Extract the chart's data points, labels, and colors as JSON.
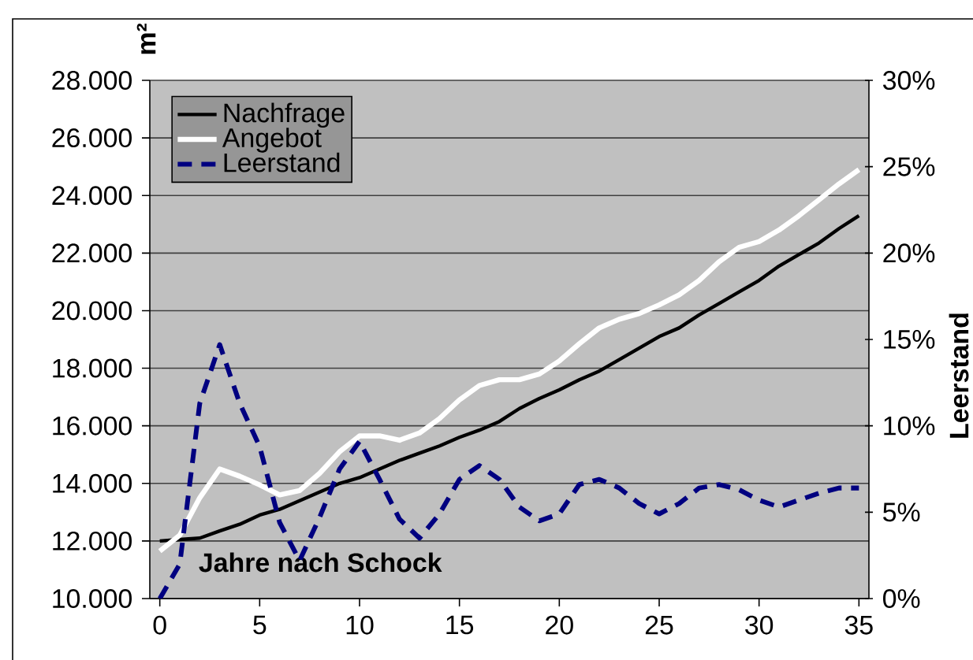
{
  "chart_data": {
    "type": "line",
    "xlabel": "Jahre nach Schock",
    "ylabel": "m²",
    "y2label": "Leerstand",
    "x": [
      0,
      1,
      2,
      3,
      4,
      5,
      6,
      7,
      8,
      9,
      10,
      11,
      12,
      13,
      14,
      15,
      16,
      17,
      18,
      19,
      20,
      21,
      22,
      23,
      24,
      25,
      26,
      27,
      28,
      29,
      30,
      31,
      32,
      33,
      34,
      35
    ],
    "xlim": [
      -0.5,
      35.5
    ],
    "xticks": [
      0,
      5,
      10,
      15,
      20,
      25,
      30,
      35
    ],
    "ylim": [
      10000,
      28000
    ],
    "yticks": [
      {
        "value": 10000,
        "label": "10.000"
      },
      {
        "value": 12000,
        "label": "12.000"
      },
      {
        "value": 14000,
        "label": "14.000"
      },
      {
        "value": 16000,
        "label": "16.000"
      },
      {
        "value": 18000,
        "label": "18.000"
      },
      {
        "value": 20000,
        "label": "20.000"
      },
      {
        "value": 22000,
        "label": "22.000"
      },
      {
        "value": 24000,
        "label": "24.000"
      },
      {
        "value": 26000,
        "label": "26.000"
      },
      {
        "value": 28000,
        "label": "28.000"
      }
    ],
    "y2lim": [
      0,
      30
    ],
    "y2ticks": [
      {
        "value": 0,
        "label": "0%"
      },
      {
        "value": 5,
        "label": "5%"
      },
      {
        "value": 10,
        "label": "10%"
      },
      {
        "value": 15,
        "label": "15%"
      },
      {
        "value": 20,
        "label": "20%"
      },
      {
        "value": 25,
        "label": "25%"
      },
      {
        "value": 30,
        "label": "30%"
      }
    ],
    "series": [
      {
        "name": "Nachfrage",
        "color": "#000000",
        "line_style": "solid",
        "values": [
          12000,
          12050,
          12100,
          12350,
          12580,
          12900,
          13100,
          13400,
          13700,
          14000,
          14200,
          14500,
          14800,
          15050,
          15300,
          15600,
          15850,
          16150,
          16600,
          16950,
          17250,
          17600,
          17900,
          18300,
          18700,
          19100,
          19400,
          19850,
          20250,
          20650,
          21050,
          21550,
          21950,
          22350,
          22850,
          23300
        ]
      },
      {
        "name": "Angebot",
        "color": "#ffffff",
        "line_style": "solid",
        "values": [
          11650,
          12200,
          13500,
          14500,
          14250,
          13950,
          13600,
          13750,
          14350,
          15100,
          15650,
          15650,
          15500,
          15750,
          16250,
          16900,
          17400,
          17600,
          17600,
          17800,
          18250,
          18850,
          19400,
          19700,
          19900,
          20200,
          20550,
          21050,
          21700,
          22200,
          22400,
          22800,
          23300,
          23850,
          24400,
          24900
        ]
      },
      {
        "name": "Leerstand",
        "color": "#000080",
        "line_style": "dashed",
        "axis": "y2",
        "values": [
          0,
          2.0,
          11.3,
          14.7,
          11.3,
          8.8,
          4.4,
          2.2,
          4.7,
          7.5,
          9.1,
          6.9,
          4.6,
          3.5,
          4.9,
          6.9,
          7.7,
          6.9,
          5.3,
          4.5,
          4.9,
          6.6,
          6.9,
          6.4,
          5.5,
          4.9,
          5.5,
          6.4,
          6.6,
          6.3,
          5.7,
          5.3,
          5.7,
          6.1,
          6.4,
          6.4
        ]
      }
    ],
    "grid": "y",
    "legend": "top left",
    "marker": "none"
  }
}
